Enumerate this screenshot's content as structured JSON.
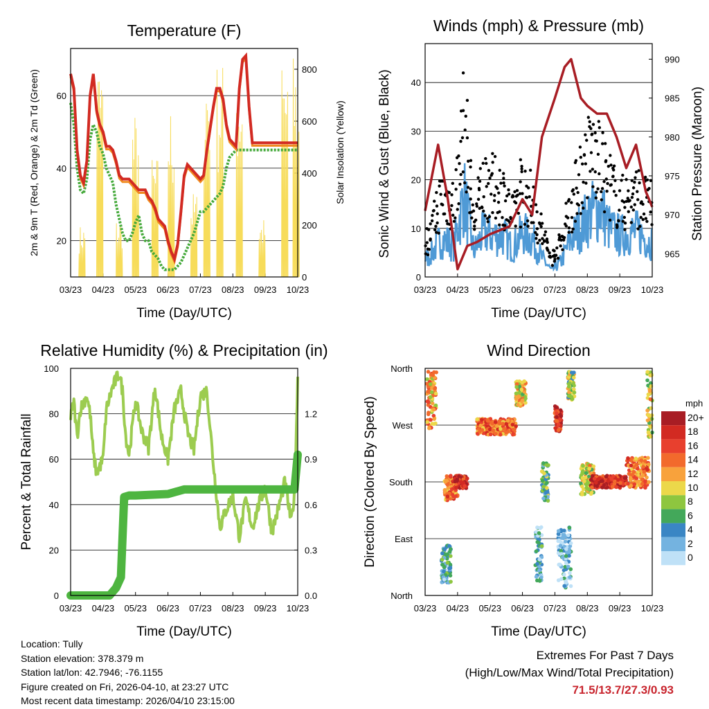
{
  "colors": {
    "temp_red": "#d22a22",
    "temp_orange": "#f08a20",
    "dewpoint_green": "#44a93a",
    "solar_yellow": "#f7dc5a",
    "gust_black": "#000000",
    "wind_blue": "#4f9ad6",
    "pressure_maroon": "#a81d24",
    "rh_lightgreen": "#9ccc50",
    "precip_green": "#4eb540",
    "grid": "#000000",
    "extremes": "#c8242d"
  },
  "months": [
    "03/23",
    "04/23",
    "05/23",
    "06/23",
    "07/23",
    "08/23",
    "09/23",
    "10/23"
  ],
  "info": {
    "location": "Location: Tully",
    "elevation": "Station elevation: 378.379 m",
    "latlon": "Station lat/lon: 42.7946; -76.1155",
    "created": "Figure created on Fri, 2026-04-10, at 23:27 UTC",
    "latest": "Most recent data timestamp: 2026/04/10 23:15:00"
  },
  "extremes": {
    "title": "Extremes For Past 7 Days",
    "subtitle": "(High/Low/Max Wind/Total Precipitation)",
    "values": "71.5/13.7/27.3/0.93"
  },
  "chart_data": [
    {
      "id": "temperature",
      "type": "line",
      "title": "Temperature (F)",
      "xlabel": "Time (Day/UTC)",
      "ylabel": "2m & 9m T (Red, Orange) & 2m Td (Green)",
      "ylabel_right": "Solar Insolation (Yellow)",
      "x": [
        0,
        0.1,
        0.2,
        0.3,
        0.4,
        0.5,
        0.6,
        0.7,
        0.8,
        0.9,
        1.0,
        1.1,
        1.2,
        1.3,
        1.4,
        1.5,
        1.6,
        1.7,
        1.8,
        1.9,
        2.0,
        2.1,
        2.2,
        2.3,
        2.4,
        2.5,
        2.6,
        2.7,
        2.8,
        2.9,
        3.0,
        3.1,
        3.2,
        3.3,
        3.4,
        3.5,
        3.6,
        3.7,
        3.8,
        3.9,
        4.0,
        4.1,
        4.2,
        4.3,
        4.4,
        4.5,
        4.6,
        4.7,
        4.8,
        4.9,
        5.0,
        5.1,
        5.2,
        5.3,
        5.4,
        5.5,
        5.6,
        5.7,
        5.8,
        5.9,
        6.0,
        6.1,
        6.2,
        6.3,
        6.4,
        6.5,
        6.6,
        6.7,
        6.8,
        6.9,
        7.0
      ],
      "ylim": [
        10,
        73
      ],
      "yticks": [
        20,
        40,
        60
      ],
      "y2lim": [
        0,
        880
      ],
      "y2ticks": [
        0,
        200,
        400,
        600,
        800
      ],
      "series": [
        {
          "name": "2m T",
          "color": "#d22a22",
          "values": [
            66,
            62,
            45,
            38,
            36,
            42,
            60,
            66,
            56,
            52,
            50,
            46,
            46,
            45,
            42,
            38,
            37,
            37,
            37,
            36,
            35,
            34,
            34,
            34,
            32,
            31,
            29,
            26,
            25,
            24,
            20,
            17,
            15,
            19,
            28,
            38,
            41,
            40,
            39,
            38,
            37,
            38,
            45,
            51,
            57,
            62,
            62,
            59,
            52,
            48,
            47,
            46,
            62,
            70,
            71,
            57,
            47,
            47,
            47,
            47,
            47,
            47,
            47,
            47,
            47,
            47,
            47,
            47,
            47,
            47,
            47
          ]
        },
        {
          "name": "2m Td",
          "color": "#44a93a",
          "values": [
            58,
            52,
            40,
            34,
            33,
            37,
            48,
            52,
            50,
            46,
            44,
            40,
            38,
            36,
            30,
            26,
            22,
            20,
            20,
            22,
            25,
            27,
            22,
            20,
            20,
            17,
            16,
            15,
            13,
            12,
            12,
            12,
            12,
            13,
            14,
            16,
            18,
            20,
            22,
            25,
            28,
            28,
            29,
            30,
            31,
            32,
            33,
            35,
            40,
            43,
            44,
            45,
            45,
            45,
            45,
            45,
            45,
            45,
            45,
            45,
            45,
            45,
            45,
            45,
            45,
            45,
            45,
            45,
            45,
            45,
            45
          ]
        }
      ]
    },
    {
      "id": "winds",
      "type": "scatter",
      "title": "Winds (mph) & Pressure (mb)",
      "xlabel": "Time (Day/UTC)",
      "ylabel": "Sonic Wind & Gust (Blue, Black)",
      "ylabel_right": "Station Pressure (Maroon)",
      "ylim": [
        0,
        48
      ],
      "yticks": [
        0,
        10,
        20,
        30,
        40
      ],
      "y2lim": [
        962,
        992
      ],
      "y2ticks": [
        965,
        970,
        975,
        980,
        985,
        990
      ],
      "series": [
        {
          "name": "Gust",
          "color": "#000000",
          "x": [
            0.1,
            0.5,
            0.9,
            1.2,
            1.5,
            1.8,
            2.1,
            2.4,
            2.7,
            3.0,
            3.3,
            3.6,
            3.9,
            4.2,
            4.5,
            4.8,
            5.1,
            5.4,
            5.7,
            6.0,
            6.3,
            6.6,
            6.9
          ],
          "values": [
            10,
            22,
            20,
            42,
            15,
            26,
            24,
            23,
            16,
            25,
            20,
            12,
            5,
            10,
            20,
            28,
            34,
            30,
            25,
            20,
            21,
            22,
            19
          ]
        },
        {
          "name": "Sonic Wind",
          "color": "#4f9ad6",
          "x": [
            0.1,
            0.5,
            0.9,
            1.2,
            1.5,
            1.8,
            2.1,
            2.4,
            2.7,
            3.0,
            3.3,
            3.6,
            3.9,
            4.2,
            4.5,
            4.8,
            5.1,
            5.4,
            5.7,
            6.0,
            6.3,
            6.6,
            6.9
          ],
          "values": [
            6,
            12,
            10,
            26,
            8,
            14,
            13,
            13,
            9,
            14,
            12,
            6,
            2,
            5,
            12,
            16,
            20,
            22,
            15,
            13,
            14,
            14,
            11
          ]
        },
        {
          "name": "Pressure",
          "color": "#a81d24",
          "axis": "right",
          "x": [
            0,
            0.4,
            0.7,
            1.0,
            1.3,
            1.6,
            2.0,
            2.3,
            2.6,
            3.0,
            3.3,
            3.6,
            4.0,
            4.3,
            4.5,
            4.8,
            5.0,
            5.3,
            5.6,
            5.9,
            6.2,
            6.5,
            6.8,
            7.0
          ],
          "values": [
            970.5,
            979,
            972,
            963,
            966,
            966.5,
            967.5,
            968,
            968.5,
            972,
            970,
            980,
            985,
            989,
            990,
            985,
            984,
            983,
            983,
            980,
            976,
            979,
            973,
            971
          ]
        }
      ]
    },
    {
      "id": "humidity",
      "type": "line",
      "title": "Relative Humidity (%) & Precipitation (in)",
      "xlabel": "Time (Day/UTC)",
      "ylabel": "Percent & Total Rainfall",
      "ylim": [
        0,
        100
      ],
      "yticks": [
        0,
        20,
        40,
        60,
        80,
        100
      ],
      "y2lim": [
        0,
        1.5
      ],
      "y2ticks": [
        "0.0",
        "0.3",
        "0.6",
        "0.9",
        "1.2"
      ],
      "series": [
        {
          "name": "RH",
          "color": "#9ccc50",
          "x": [
            0,
            0.1,
            0.2,
            0.3,
            0.5,
            0.6,
            0.7,
            0.8,
            1.0,
            1.1,
            1.3,
            1.5,
            1.6,
            1.7,
            1.8,
            2.0,
            2.2,
            2.4,
            2.6,
            2.8,
            3.0,
            3.2,
            3.4,
            3.6,
            3.8,
            4.0,
            4.2,
            4.4,
            4.6,
            4.8,
            5.0,
            5.2,
            5.4,
            5.6,
            5.8,
            6.0,
            6.2,
            6.4,
            6.6,
            6.8,
            6.9,
            7.0
          ],
          "values": [
            78,
            85,
            70,
            82,
            88,
            80,
            62,
            54,
            60,
            82,
            92,
            98,
            90,
            70,
            62,
            86,
            72,
            65,
            92,
            70,
            60,
            82,
            90,
            72,
            64,
            88,
            90,
            58,
            30,
            38,
            44,
            26,
            42,
            30,
            40,
            48,
            28,
            38,
            50,
            32,
            45,
            95
          ]
        },
        {
          "name": "Total Precipitation",
          "color": "#4eb540",
          "axis": "right",
          "x": [
            0,
            1.2,
            1.4,
            1.55,
            1.65,
            1.8,
            2.0,
            3.0,
            3.5,
            4.0,
            5.0,
            6.0,
            6.9,
            7.0
          ],
          "values": [
            0,
            0,
            0.05,
            0.12,
            0.65,
            0.66,
            0.66,
            0.67,
            0.7,
            0.7,
            0.7,
            0.7,
            0.7,
            0.93
          ]
        }
      ]
    },
    {
      "id": "wind_direction",
      "type": "scatter",
      "title": "Wind Direction",
      "xlabel": "Time (Day/UTC)",
      "ylabel": "Direction (Colored By Speed)",
      "ylim": [
        0,
        360
      ],
      "yticks": [
        "North",
        "East",
        "South",
        "West",
        "North"
      ],
      "legend_title": "mph",
      "legend_labels": [
        "20+",
        "18",
        "16",
        "14",
        "12",
        "10",
        "8",
        "6",
        "4",
        "2",
        "0"
      ],
      "legend_colors": [
        "#a81d24",
        "#d22a22",
        "#e8402e",
        "#f26a2c",
        "#f8a23c",
        "#ecd84a",
        "#8ec63f",
        "#43a85a",
        "#3a86c4",
        "#74b3e0",
        "#bfe1f7"
      ],
      "clusters": [
        {
          "x0": 0.05,
          "x1": 0.35,
          "y0": 265,
          "y1": 355,
          "speed": 12
        },
        {
          "x0": 0.5,
          "x1": 0.8,
          "y0": 20,
          "y1": 80,
          "speed": 4
        },
        {
          "x0": 0.6,
          "x1": 1.0,
          "y0": 150,
          "y1": 190,
          "speed": 14
        },
        {
          "x0": 0.9,
          "x1": 1.3,
          "y0": 170,
          "y1": 190,
          "speed": 18
        },
        {
          "x0": 1.6,
          "x1": 2.8,
          "y0": 255,
          "y1": 280,
          "speed": 14
        },
        {
          "x0": 2.8,
          "x1": 3.1,
          "y0": 300,
          "y1": 340,
          "speed": 10
        },
        {
          "x0": 3.4,
          "x1": 3.6,
          "y0": 20,
          "y1": 110,
          "speed": 4
        },
        {
          "x0": 3.6,
          "x1": 3.8,
          "y0": 150,
          "y1": 210,
          "speed": 6
        },
        {
          "x0": 4.0,
          "x1": 4.2,
          "y0": 260,
          "y1": 300,
          "speed": 18
        },
        {
          "x0": 4.1,
          "x1": 4.5,
          "y0": 10,
          "y1": 110,
          "speed": 2
        },
        {
          "x0": 4.4,
          "x1": 4.6,
          "y0": 310,
          "y1": 355,
          "speed": 8
        },
        {
          "x0": 4.8,
          "x1": 5.2,
          "y0": 160,
          "y1": 210,
          "speed": 10
        },
        {
          "x0": 5.1,
          "x1": 6.2,
          "y0": 170,
          "y1": 190,
          "speed": 18
        },
        {
          "x0": 6.2,
          "x1": 6.9,
          "y0": 170,
          "y1": 220,
          "speed": 14
        },
        {
          "x0": 6.85,
          "x1": 7.0,
          "y0": 250,
          "y1": 355,
          "speed": 10
        }
      ]
    }
  ]
}
